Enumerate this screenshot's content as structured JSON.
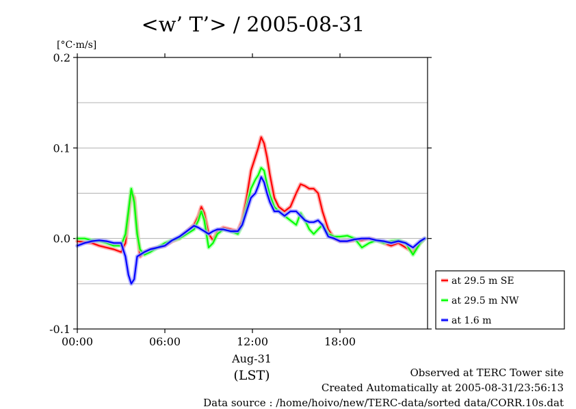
{
  "chart_data": {
    "type": "line",
    "title": "<w’ T’> / 2005-08-31",
    "ylabel": "[°C·m/s]",
    "ylim": [
      -0.1,
      0.2
    ],
    "yticks": [
      -0.1,
      0.0,
      0.1,
      0.2
    ],
    "ytick_labels": [
      "-0.1",
      "0.0",
      "0.1",
      "0.2"
    ],
    "y_gridlines": [
      -0.05,
      0.0,
      0.05,
      0.1,
      0.15
    ],
    "xlim": [
      0,
      24
    ],
    "xticks": [
      0,
      6,
      12,
      18
    ],
    "xtick_labels": [
      "00:00",
      "06:00",
      "12:00",
      "18:00"
    ],
    "xlabel_date": "Aug-31",
    "xlabel": "(LST)",
    "grid": true,
    "legend_position": "right-bottom",
    "series": [
      {
        "name": "at 29.5 m SE",
        "color": "#ff0000",
        "x": [
          0,
          0.5,
          1,
          1.5,
          2,
          2.5,
          3,
          3.3,
          3.5,
          3.7,
          3.9,
          4.1,
          4.3,
          4.6,
          5,
          5.5,
          6,
          6.5,
          7,
          7.5,
          8,
          8.3,
          8.5,
          8.7,
          9,
          9.3,
          9.6,
          10,
          10.5,
          11,
          11.3,
          11.6,
          11.9,
          12.2,
          12.4,
          12.6,
          12.8,
          13,
          13.2,
          13.5,
          13.8,
          14.2,
          14.6,
          15,
          15.3,
          15.6,
          15.9,
          16.2,
          16.5,
          16.8,
          17.2,
          17.6,
          18,
          18.5,
          19,
          19.5,
          20,
          20.5,
          21,
          21.5,
          22,
          22.5,
          23,
          23.5,
          23.8
        ],
        "y": [
          -0.003,
          -0.004,
          -0.005,
          -0.008,
          -0.01,
          -0.012,
          -0.015,
          -0.005,
          0.025,
          0.052,
          0.045,
          0.01,
          -0.02,
          -0.015,
          -0.012,
          -0.01,
          -0.008,
          -0.003,
          0.0,
          0.008,
          0.015,
          0.025,
          0.035,
          0.028,
          0.005,
          -0.002,
          0.008,
          0.012,
          0.01,
          0.008,
          0.02,
          0.045,
          0.075,
          0.09,
          0.1,
          0.112,
          0.105,
          0.09,
          0.07,
          0.045,
          0.035,
          0.03,
          0.035,
          0.05,
          0.06,
          0.058,
          0.055,
          0.055,
          0.05,
          0.03,
          0.01,
          0.0,
          -0.003,
          -0.003,
          -0.002,
          -0.002,
          0.0,
          -0.002,
          -0.005,
          -0.008,
          -0.005,
          -0.01,
          -0.015,
          -0.005,
          0.0
        ]
      },
      {
        "name": "at 29.5 m NW",
        "color": "#00ff00",
        "x": [
          0,
          0.5,
          1,
          1.5,
          2,
          2.5,
          3,
          3.3,
          3.5,
          3.7,
          3.9,
          4.1,
          4.3,
          4.6,
          5,
          5.5,
          6,
          6.5,
          7,
          7.5,
          8,
          8.3,
          8.5,
          8.7,
          9,
          9.3,
          9.6,
          10,
          10.5,
          11,
          11.3,
          11.6,
          11.9,
          12.2,
          12.4,
          12.6,
          12.8,
          13,
          13.2,
          13.5,
          13.8,
          14.2,
          14.6,
          15,
          15.3,
          15.6,
          15.9,
          16.2,
          16.5,
          16.8,
          17.2,
          17.6,
          18,
          18.5,
          19,
          19.5,
          20,
          20.5,
          21,
          21.5,
          22,
          22.5,
          23,
          23.5,
          23.8
        ],
        "y": [
          0.0,
          0.0,
          -0.002,
          -0.003,
          -0.005,
          -0.008,
          -0.008,
          0.005,
          0.03,
          0.055,
          0.04,
          0.005,
          -0.012,
          -0.018,
          -0.015,
          -0.01,
          -0.005,
          -0.002,
          0.0,
          0.005,
          0.01,
          0.02,
          0.03,
          0.02,
          -0.01,
          -0.005,
          0.005,
          0.01,
          0.008,
          0.005,
          0.015,
          0.035,
          0.055,
          0.065,
          0.07,
          0.078,
          0.075,
          0.06,
          0.048,
          0.035,
          0.03,
          0.025,
          0.02,
          0.015,
          0.028,
          0.02,
          0.01,
          0.005,
          0.01,
          0.015,
          0.005,
          0.002,
          0.002,
          0.003,
          0.0,
          -0.01,
          -0.005,
          -0.002,
          -0.005,
          -0.003,
          -0.002,
          -0.005,
          -0.018,
          -0.005,
          0.0
        ]
      },
      {
        "name": "at 1.6 m",
        "color": "#0000ff",
        "x": [
          0,
          0.5,
          1,
          1.5,
          2,
          2.5,
          3,
          3.3,
          3.5,
          3.7,
          3.9,
          4.1,
          4.3,
          4.6,
          5,
          5.5,
          6,
          6.5,
          7,
          7.5,
          8,
          8.3,
          8.5,
          8.7,
          9,
          9.3,
          9.6,
          10,
          10.5,
          11,
          11.3,
          11.6,
          11.9,
          12.2,
          12.4,
          12.6,
          12.8,
          13,
          13.2,
          13.5,
          13.8,
          14.2,
          14.6,
          15,
          15.3,
          15.6,
          15.9,
          16.2,
          16.5,
          16.8,
          17.2,
          17.6,
          18,
          18.5,
          19,
          19.5,
          20,
          20.5,
          21,
          21.5,
          22,
          22.5,
          23,
          23.5,
          23.8
        ],
        "y": [
          -0.008,
          -0.005,
          -0.003,
          -0.002,
          -0.003,
          -0.005,
          -0.005,
          -0.02,
          -0.04,
          -0.05,
          -0.045,
          -0.02,
          -0.018,
          -0.015,
          -0.012,
          -0.01,
          -0.008,
          -0.002,
          0.002,
          0.008,
          0.014,
          0.012,
          0.01,
          0.008,
          0.005,
          0.008,
          0.01,
          0.01,
          0.008,
          0.008,
          0.015,
          0.03,
          0.045,
          0.05,
          0.058,
          0.068,
          0.062,
          0.05,
          0.04,
          0.03,
          0.03,
          0.025,
          0.03,
          0.03,
          0.025,
          0.02,
          0.018,
          0.018,
          0.02,
          0.015,
          0.002,
          0.0,
          -0.003,
          -0.003,
          -0.001,
          0.0,
          0.0,
          -0.002,
          -0.003,
          -0.005,
          -0.003,
          -0.005,
          -0.01,
          -0.003,
          0.0
        ]
      }
    ]
  },
  "footer": {
    "site": "Observed at TERC Tower site",
    "created": "Created Automatically at 2005-08-31/23:56:13",
    "source": "Data source : /home/hoivo/new/TERC-data/sorted  data/CORR.10s.dat"
  }
}
